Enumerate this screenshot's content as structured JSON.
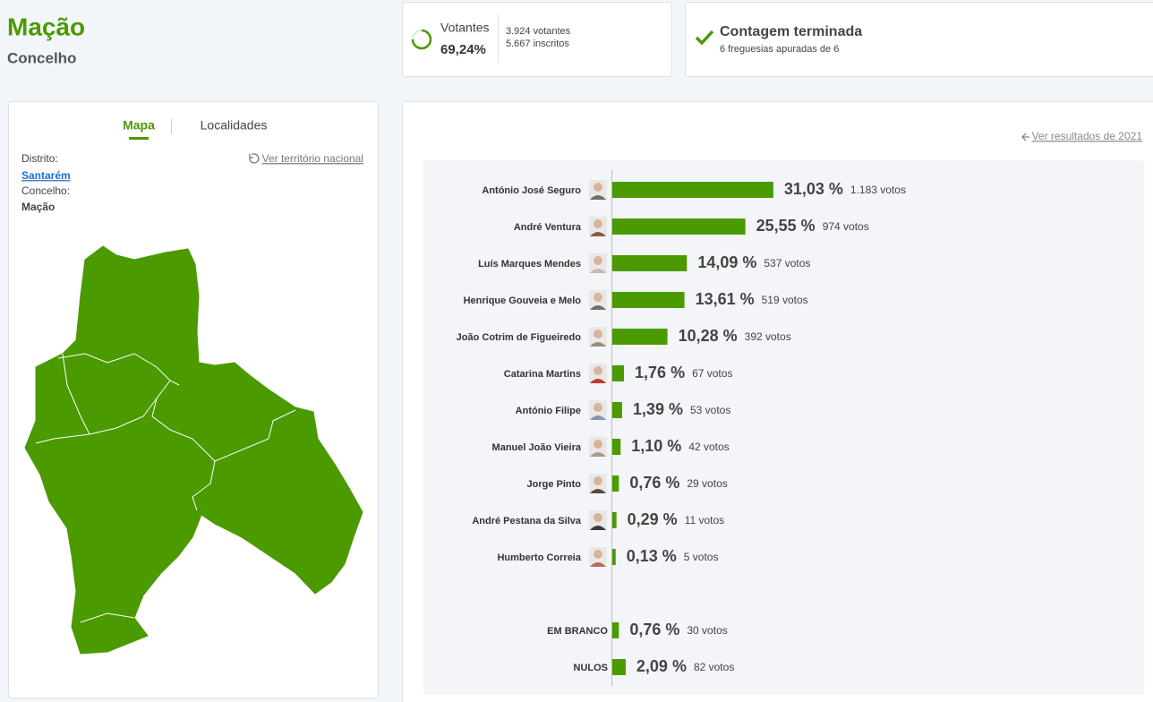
{
  "header": {
    "title": "Mação",
    "subtitle": "Concelho"
  },
  "turnout": {
    "label": "Votantes",
    "value": "69,24%",
    "voters": "3.924 votantes",
    "registered": "5.667 inscritos"
  },
  "status": {
    "title": "Contagem terminada",
    "detail": "6 freguesias apuradas de 6"
  },
  "left_panel": {
    "tabs": [
      "Mapa",
      "Localidades"
    ],
    "district_label": "Distrito:",
    "district": "Santarém",
    "municipality_label": "Concelho:",
    "municipality": "Mação",
    "national_link": "Ver território nacional"
  },
  "results": {
    "previous_link": "Ver resultados de 2021",
    "names": [
      "António José Seguro",
      "André Ventura",
      "Luís Marques Mendes",
      "Henrique Gouveia e Melo",
      "João Cotrim de Figueiredo",
      "Catarina Martins",
      "António Filipe",
      "Manuel João Vieira",
      "Jorge Pinto",
      "André Pestana da Silva",
      "Humberto Correia",
      "EM BRANCO",
      "NULOS"
    ],
    "values": [
      31.03,
      25.55,
      14.09,
      13.61,
      10.28,
      1.76,
      1.39,
      1.1,
      0.76,
      0.29,
      0.13,
      0.76,
      2.09
    ],
    "value_labels": [
      "31,03 %",
      "25,55 %",
      "14,09 %",
      "13,61 %",
      "10,28 %",
      "1,76 %",
      "1,39 %",
      "1,10 %",
      "0,76 %",
      "0,29 %",
      "0,13 %",
      "0,76 %",
      "2,09 %"
    ],
    "votes": [
      "1.183 votos",
      "974 votos",
      "537 votos",
      "519 votos",
      "392 votos",
      "67 votos",
      "53 votos",
      "42 votos",
      "29 votos",
      "11 votos",
      "5 votos",
      "30 votos",
      "82 votos"
    ],
    "color": "#4a9a00"
  }
}
